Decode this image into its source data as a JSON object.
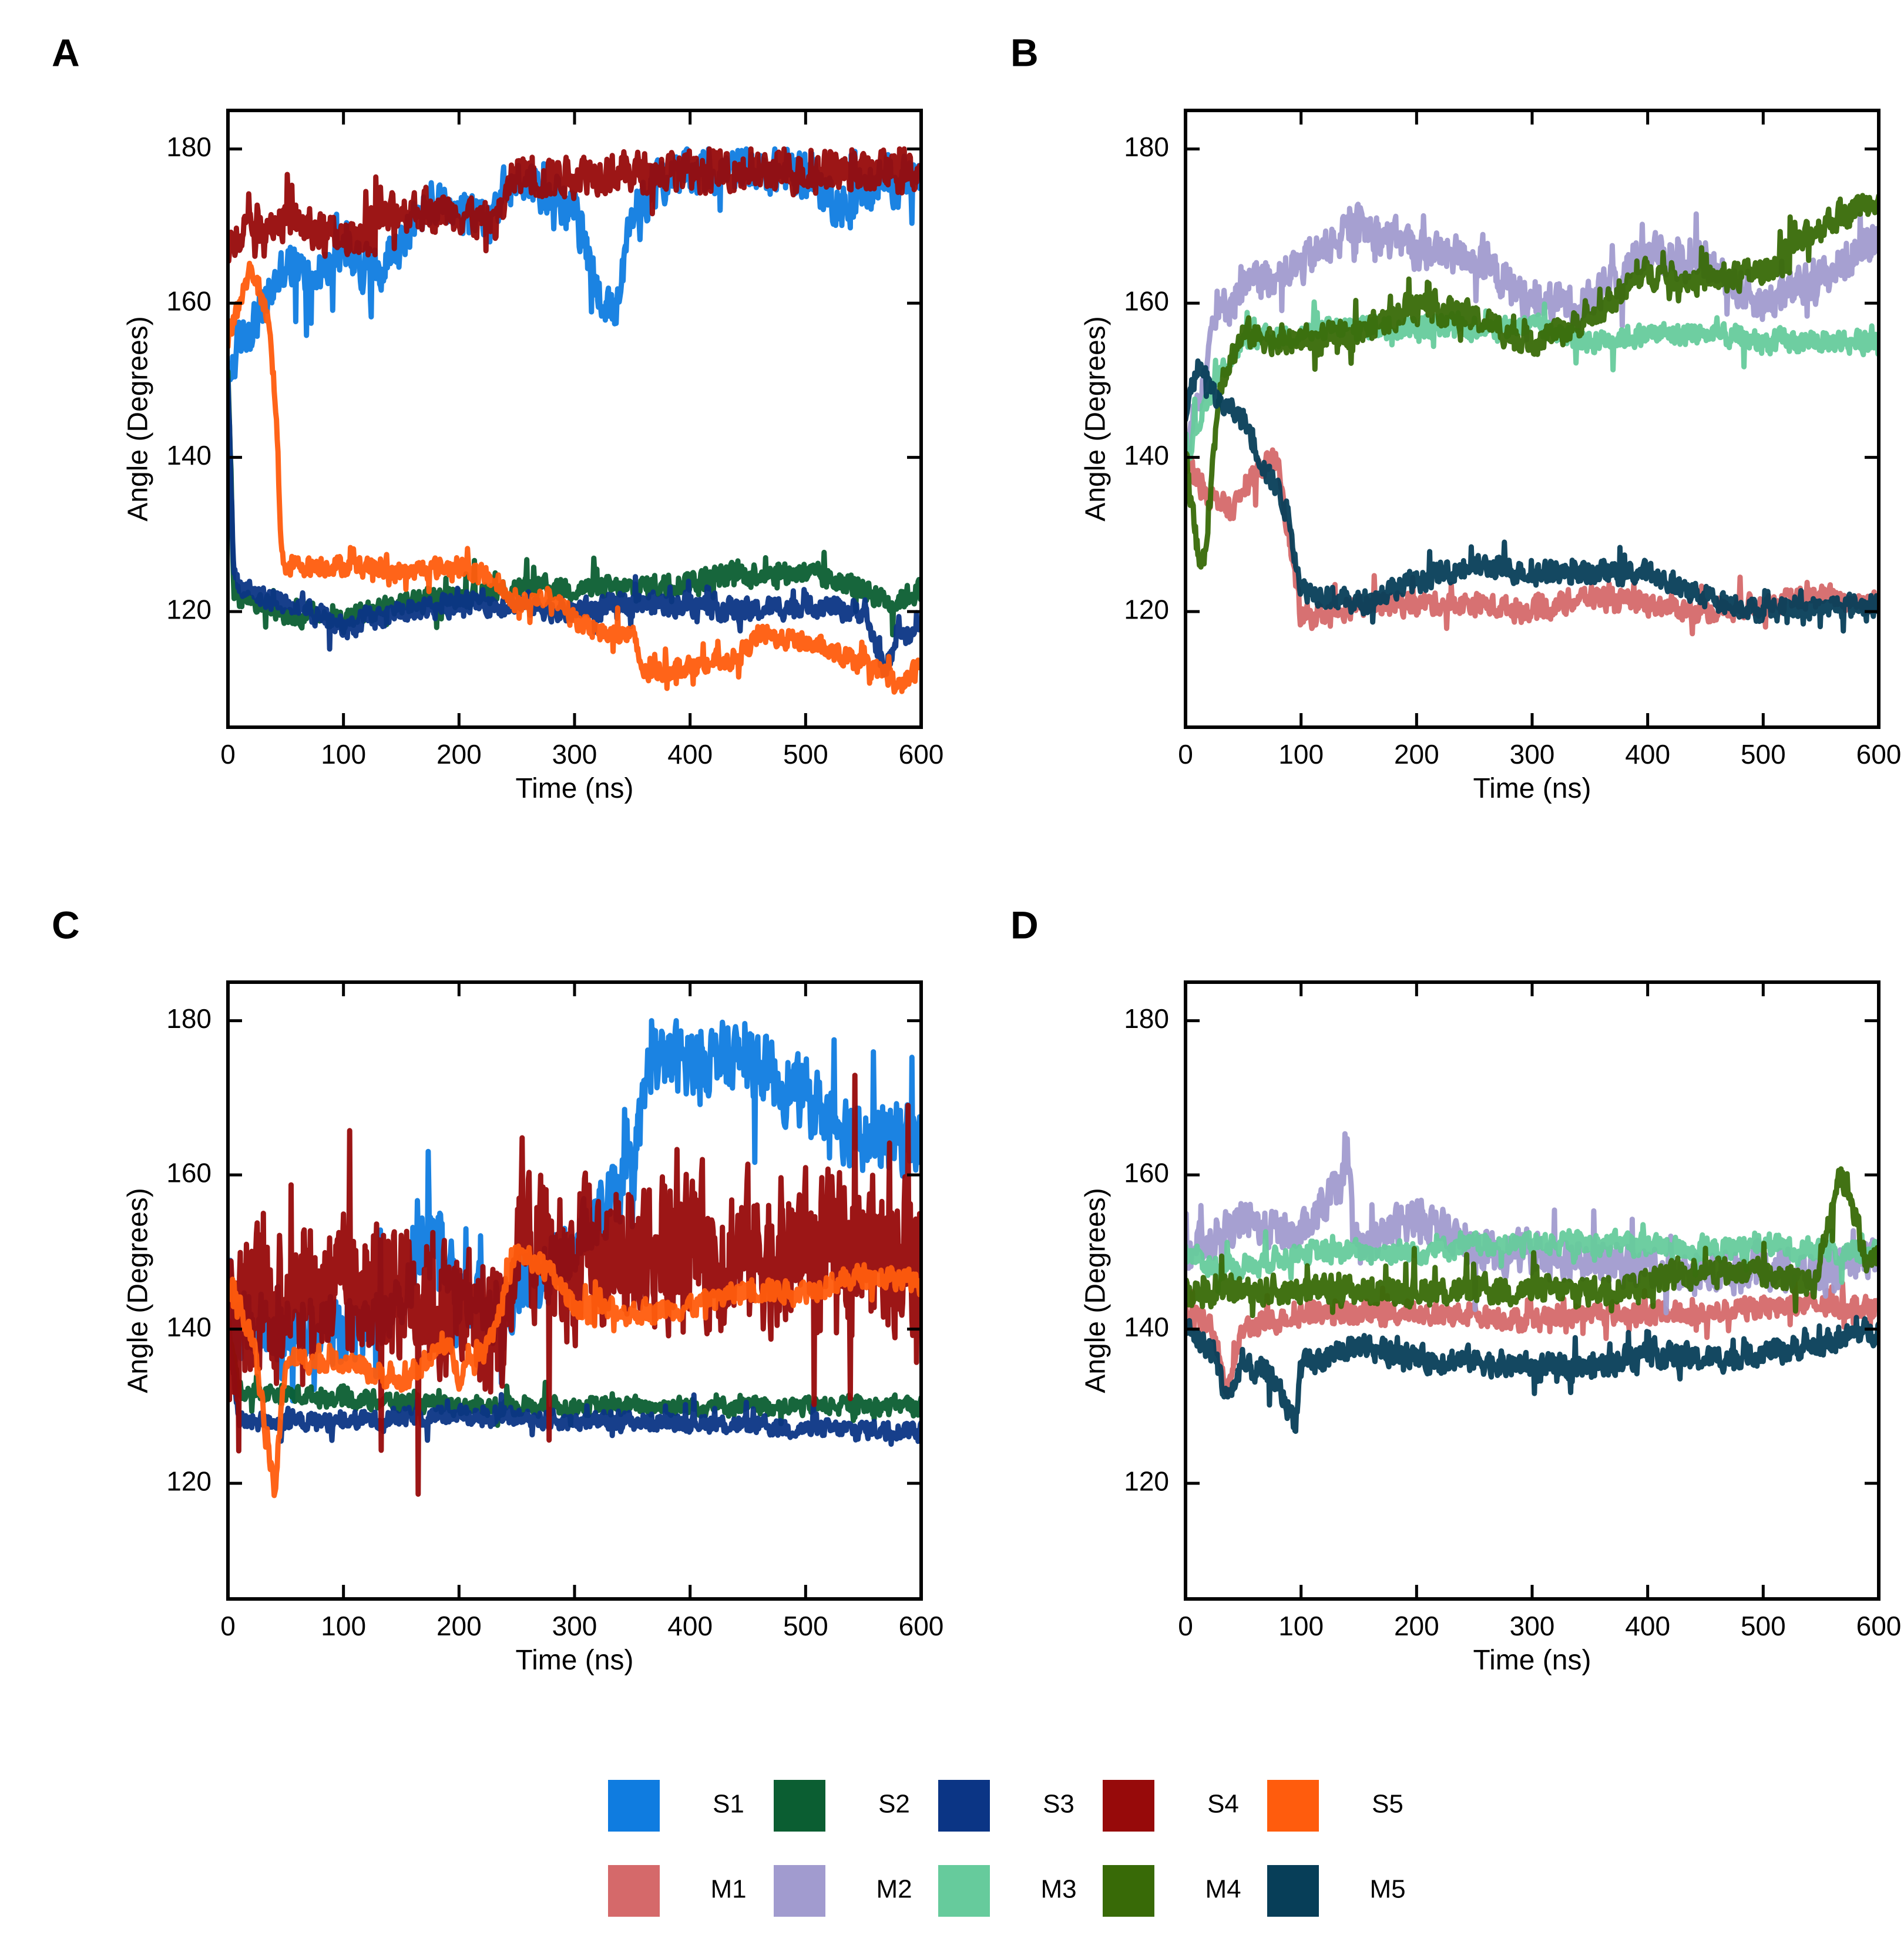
{
  "figure": {
    "legend": [
      {
        "name": "S1",
        "color": "#0f7ce0"
      },
      {
        "name": "S2",
        "color": "#0b5e32"
      },
      {
        "name": "S3",
        "color": "#0b3585"
      },
      {
        "name": "S4",
        "color": "#970a0a"
      },
      {
        "name": "S5",
        "color": "#ff5c0d"
      },
      {
        "name": "M1",
        "color": "#d5696a"
      },
      {
        "name": "M2",
        "color": "#a19bcf"
      },
      {
        "name": "M3",
        "color": "#66cb9c"
      },
      {
        "name": "M4",
        "color": "#386a07"
      },
      {
        "name": "M5",
        "color": "#073e58"
      }
    ]
  },
  "chart_data": [
    {
      "panel_label": "A",
      "type": "line",
      "xlabel": "Time (ns)",
      "ylabel": "Angle (Degrees)",
      "xlim": [
        0,
        600
      ],
      "ylim": [
        105,
        185
      ],
      "xticks": [
        0,
        100,
        200,
        300,
        400,
        500,
        600
      ],
      "yticks": [
        120,
        140,
        160,
        180
      ],
      "series": [
        {
          "name": "S1",
          "x": [
            0,
            10,
            25,
            50,
            75,
            100,
            125,
            150,
            175,
            200,
            225,
            250,
            275,
            300,
            320,
            335,
            350,
            375,
            400,
            450,
            500,
            535,
            550,
            575,
            600
          ],
          "y": [
            150,
            155,
            158,
            165,
            163,
            167,
            164,
            168,
            173,
            171,
            172,
            176,
            175,
            172,
            162,
            157,
            172,
            176,
            177,
            177,
            177,
            172,
            175,
            176,
            176
          ],
          "noise": 4
        },
        {
          "name": "S2",
          "x": [
            0,
            5,
            10,
            50,
            100,
            150,
            200,
            250,
            300,
            350,
            400,
            450,
            500,
            550,
            575,
            600
          ],
          "y": [
            150,
            123,
            122,
            120,
            119,
            121,
            122,
            123,
            123,
            123,
            124,
            125,
            125,
            123,
            121,
            123
          ],
          "noise": 2
        },
        {
          "name": "S3",
          "x": [
            0,
            5,
            10,
            50,
            100,
            150,
            200,
            250,
            300,
            350,
            400,
            450,
            500,
            550,
            570,
            580,
            590,
            600
          ],
          "y": [
            150,
            125,
            123,
            121,
            118,
            120,
            121,
            121,
            120,
            121,
            121,
            120,
            121,
            120,
            112,
            118,
            116,
            119
          ],
          "noise": 2
        },
        {
          "name": "S4",
          "x": [
            0,
            10,
            50,
            100,
            150,
            200,
            230,
            250,
            275,
            300,
            350,
            400,
            450,
            500,
            550,
            600
          ],
          "y": [
            165,
            170,
            171,
            168,
            172,
            172,
            170,
            177,
            176,
            177,
            177,
            177,
            177,
            177,
            177,
            177
          ],
          "noise": 3.5
        },
        {
          "name": "S5",
          "x": [
            0,
            10,
            20,
            35,
            42,
            46,
            50,
            100,
            150,
            200,
            230,
            250,
            280,
            300,
            330,
            350,
            360,
            400,
            440,
            460,
            500,
            550,
            570,
            580,
            600
          ],
          "y": [
            155,
            160,
            165,
            158,
            146,
            128,
            126,
            126,
            125,
            126,
            124,
            121,
            122,
            119,
            117,
            117,
            112,
            113,
            114,
            117,
            116,
            113,
            112,
            110,
            113
          ],
          "noise": 1.8
        }
      ]
    },
    {
      "panel_label": "B",
      "type": "line",
      "xlabel": "Time (ns)",
      "ylabel": "Angle (Degrees)",
      "xlim": [
        0,
        600
      ],
      "ylim": [
        105,
        185
      ],
      "xticks": [
        0,
        100,
        200,
        300,
        400,
        500,
        600
      ],
      "yticks": [
        120,
        140,
        160,
        180
      ],
      "series": [
        {
          "name": "M1",
          "x": [
            0,
            20,
            40,
            60,
            80,
            95,
            100,
            150,
            200,
            250,
            300,
            350,
            400,
            450,
            500,
            550,
            600
          ],
          "y": [
            140,
            135,
            133,
            138,
            140,
            124,
            119,
            121,
            121,
            121,
            120,
            122,
            121,
            120,
            121,
            122,
            121
          ],
          "noise": 2
        },
        {
          "name": "M2",
          "x": [
            0,
            25,
            50,
            100,
            150,
            200,
            250,
            300,
            350,
            400,
            450,
            500,
            550,
            600
          ],
          "y": [
            140,
            158,
            162,
            165,
            170,
            167,
            166,
            160,
            160,
            167,
            165,
            160,
            163,
            169
          ],
          "noise": 3.5
        },
        {
          "name": "M3",
          "x": [
            0,
            25,
            50,
            100,
            150,
            200,
            250,
            300,
            350,
            400,
            450,
            500,
            550,
            600
          ],
          "y": [
            140,
            150,
            155,
            156,
            157,
            157,
            157,
            157,
            155,
            156,
            156,
            155,
            155,
            155
          ],
          "noise": 2
        },
        {
          "name": "M4",
          "x": [
            0,
            10,
            15,
            30,
            50,
            100,
            150,
            200,
            250,
            300,
            350,
            400,
            450,
            500,
            550,
            600
          ],
          "y": [
            140,
            128,
            125,
            150,
            156,
            155,
            156,
            160,
            158,
            155,
            158,
            164,
            163,
            164,
            170,
            174
          ],
          "noise": 2.5
        },
        {
          "name": "M5",
          "x": [
            0,
            10,
            30,
            50,
            70,
            80,
            90,
            100,
            150,
            200,
            250,
            300,
            350,
            400,
            450,
            500,
            600
          ],
          "y": [
            145,
            152,
            147,
            145,
            138,
            136,
            132,
            123,
            121,
            124,
            126,
            125,
            125,
            125,
            122,
            120,
            121
          ],
          "noise": 2
        }
      ]
    },
    {
      "panel_label": "C",
      "type": "line",
      "xlabel": "Time (ns)",
      "ylabel": "Angle (Degrees)",
      "xlim": [
        0,
        600
      ],
      "ylim": [
        105,
        185
      ],
      "xticks": [
        0,
        100,
        200,
        300,
        400,
        500,
        600
      ],
      "yticks": [
        120,
        140,
        160,
        180
      ],
      "series": [
        {
          "name": "S1",
          "x": [
            0,
            50,
            100,
            150,
            175,
            200,
            240,
            250,
            300,
            350,
            365,
            400,
            450,
            500,
            550,
            600
          ],
          "y": [
            140,
            140,
            140,
            142,
            155,
            145,
            142,
            145,
            150,
            160,
            175,
            175,
            175,
            170,
            165,
            165
          ],
          "noise": 6
        },
        {
          "name": "S2",
          "x": [
            0,
            10,
            100,
            200,
            300,
            400,
            500,
            600
          ],
          "y": [
            140,
            132,
            131,
            130,
            130,
            130,
            130,
            130
          ],
          "noise": 1.6
        },
        {
          "name": "S3",
          "x": [
            0,
            10,
            100,
            200,
            300,
            400,
            500,
            600
          ],
          "y": [
            140,
            128,
            128,
            129,
            128,
            128,
            127,
            127
          ],
          "noise": 1.6
        },
        {
          "name": "S4",
          "x": [
            0,
            50,
            100,
            150,
            200,
            240,
            250,
            300,
            350,
            400,
            450,
            500,
            550,
            600
          ],
          "y": [
            140,
            146,
            144,
            146,
            142,
            140,
            150,
            148,
            150,
            150,
            150,
            150,
            150,
            150
          ],
          "noise": 13
        },
        {
          "name": "S5",
          "x": [
            0,
            20,
            35,
            40,
            50,
            100,
            150,
            190,
            200,
            230,
            250,
            275,
            300,
            350,
            400,
            450,
            500,
            550,
            600
          ],
          "y": [
            145,
            140,
            125,
            118,
            136,
            136,
            133,
            138,
            134,
            140,
            150,
            148,
            143,
            142,
            143,
            145,
            145,
            147,
            146
          ],
          "noise": 2
        }
      ]
    },
    {
      "panel_label": "D",
      "type": "line",
      "xlabel": "Time (ns)",
      "ylabel": "Angle (Degrees)",
      "xlim": [
        0,
        600
      ],
      "ylim": [
        105,
        185
      ],
      "xticks": [
        0,
        100,
        200,
        300,
        400,
        500,
        600
      ],
      "yticks": [
        120,
        140,
        160,
        180
      ],
      "series": [
        {
          "name": "M1",
          "x": [
            0,
            25,
            35,
            50,
            100,
            150,
            200,
            250,
            300,
            350,
            400,
            450,
            500,
            550,
            600
          ],
          "y": [
            142,
            140,
            132,
            140,
            142,
            142,
            142,
            142,
            141,
            142,
            142,
            142,
            143,
            143,
            143
          ],
          "noise": 2
        },
        {
          "name": "M2",
          "x": [
            0,
            50,
            100,
            140,
            150,
            200,
            250,
            300,
            350,
            400,
            450,
            500,
            550,
            600
          ],
          "y": [
            150,
            154,
            152,
            160,
            150,
            155,
            150,
            150,
            149,
            148,
            147,
            148,
            147,
            150
          ],
          "noise": 3.5
        },
        {
          "name": "M3",
          "x": [
            0,
            25,
            50,
            100,
            150,
            200,
            250,
            300,
            350,
            400,
            450,
            500,
            550,
            600
          ],
          "y": [
            150,
            148,
            148,
            150,
            150,
            150,
            151,
            151,
            151,
            151,
            150,
            151,
            150,
            150
          ],
          "noise": 2
        },
        {
          "name": "M4",
          "x": [
            0,
            50,
            100,
            150,
            200,
            250,
            300,
            350,
            400,
            450,
            500,
            545,
            565,
            575,
            590,
            600
          ],
          "y": [
            145,
            145,
            145,
            145,
            145,
            145,
            145,
            145,
            146,
            148,
            147,
            146,
            160,
            158,
            148,
            150
          ],
          "noise": 2.5
        },
        {
          "name": "M5",
          "x": [
            0,
            25,
            35,
            50,
            75,
            95,
            100,
            150,
            200,
            250,
            300,
            350,
            400,
            450,
            500,
            550,
            600
          ],
          "y": [
            140,
            137,
            131,
            135,
            134,
            128,
            135,
            138,
            136,
            136,
            135,
            135,
            137,
            136,
            137,
            138,
            140
          ],
          "noise": 2.2
        }
      ]
    }
  ]
}
